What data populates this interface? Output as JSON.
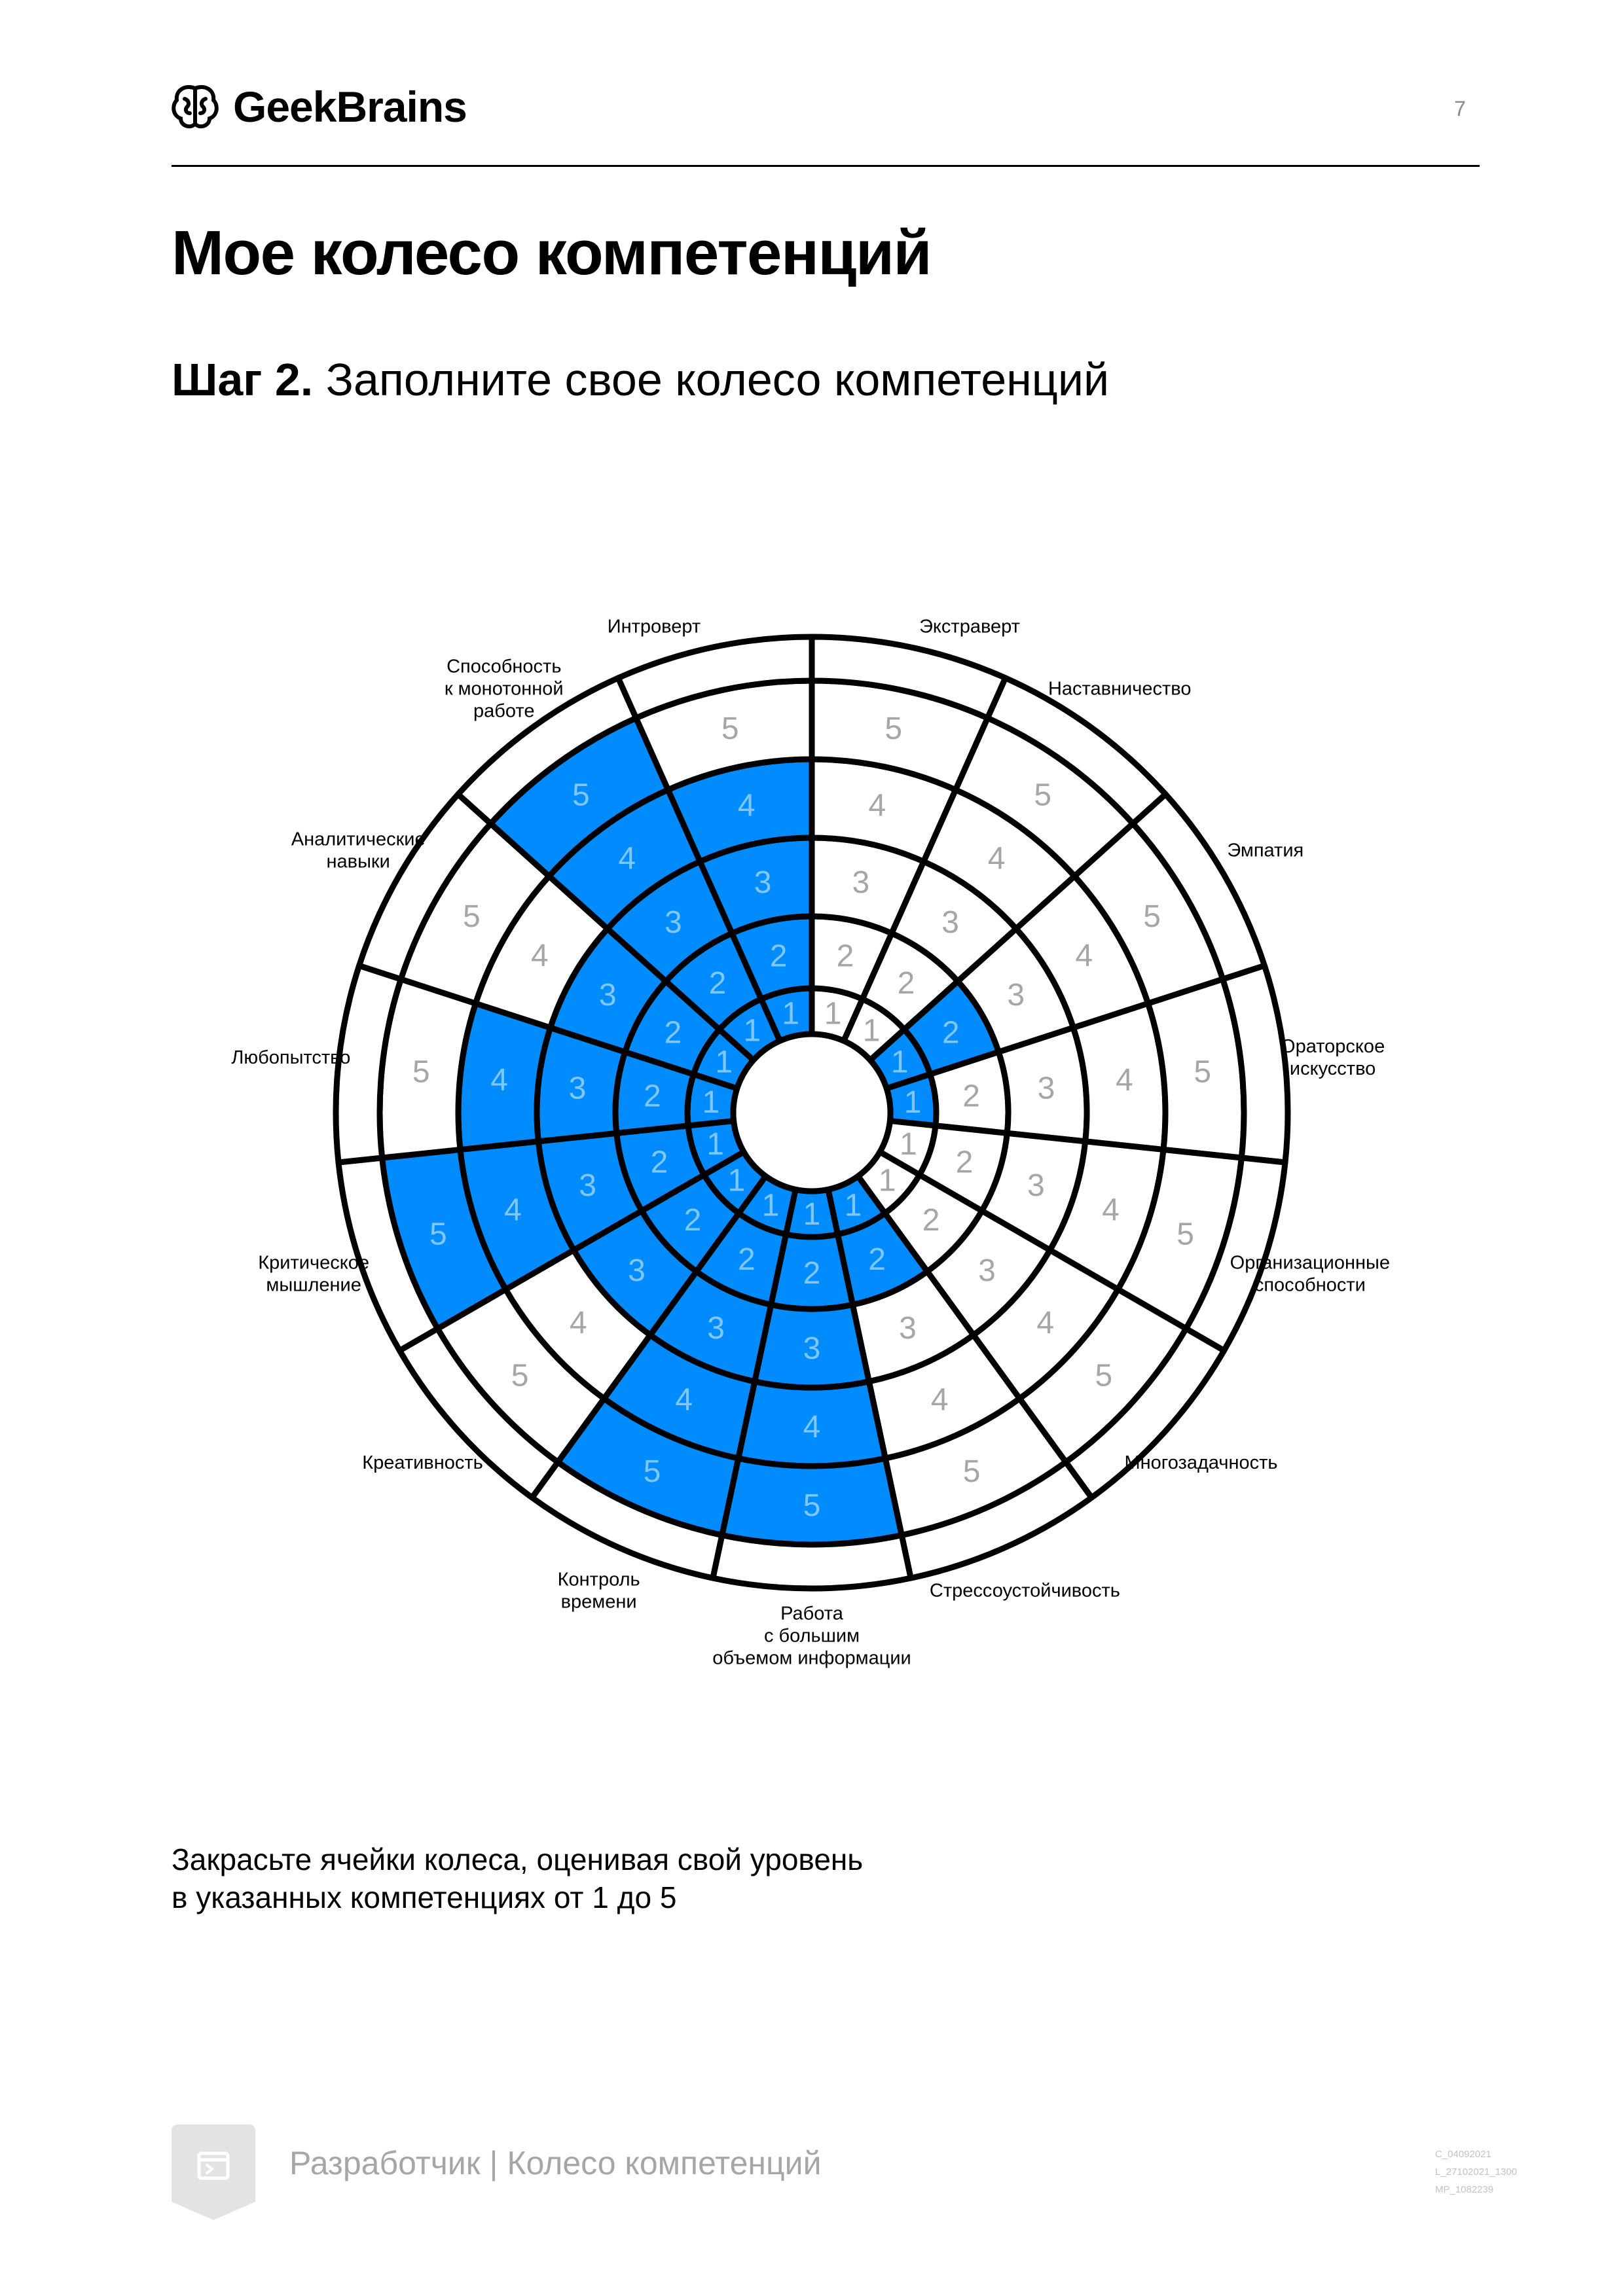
{
  "header": {
    "logo_text": "GeekBrains",
    "page_number": "7"
  },
  "title": "Мое колесо компетенций",
  "step": {
    "label": "Шаг 2.",
    "text": "Заполните свое колесо компетенций"
  },
  "wheel": {
    "fill_color": "#008CFF",
    "number_color": "#A6A6A6",
    "numbers_on_fill_color": "#80C6FF",
    "levels": [
      "1",
      "2",
      "3",
      "4",
      "5"
    ],
    "segments": [
      {
        "label": [
          "Экстраверт"
        ],
        "filled": 0
      },
      {
        "label": [
          "Наставничество"
        ],
        "filled": 0
      },
      {
        "label": [
          "Эмпатия"
        ],
        "filled": 2
      },
      {
        "label": [
          "Ораторское",
          "искусство"
        ],
        "filled": 1
      },
      {
        "label": [
          "Организационные",
          "способности"
        ],
        "filled": 0
      },
      {
        "label": [
          "Многозадачность"
        ],
        "filled": 0
      },
      {
        "label": [
          "Стрессоустойчивость"
        ],
        "filled": 2
      },
      {
        "label": [
          "Работа",
          "с большим",
          "объемом информации"
        ],
        "filled": 5
      },
      {
        "label": [
          "Контроль",
          "времени"
        ],
        "filled": 5
      },
      {
        "label": [
          "Креативность"
        ],
        "filled": 3
      },
      {
        "label": [
          "Критическое",
          "мышление"
        ],
        "filled": 5
      },
      {
        "label": [
          "Любопытство"
        ],
        "filled": 4
      },
      {
        "label": [
          "Аналитические",
          "навыки"
        ],
        "filled": 3
      },
      {
        "label": [
          "Способность",
          "к монотонной",
          "работе"
        ],
        "filled": 5
      },
      {
        "label": [
          "Интроверт"
        ],
        "filled": 4
      }
    ]
  },
  "instruction": [
    "Закрасьте ячейки колеса, оценивая свой уровень",
    "в указанных компетенциях от 1 до 5"
  ],
  "footer": {
    "text": "Разработчик | Колесо компетенций",
    "codes": [
      "C_04092021",
      "L_27102021_1300",
      "MP_1082239"
    ]
  }
}
